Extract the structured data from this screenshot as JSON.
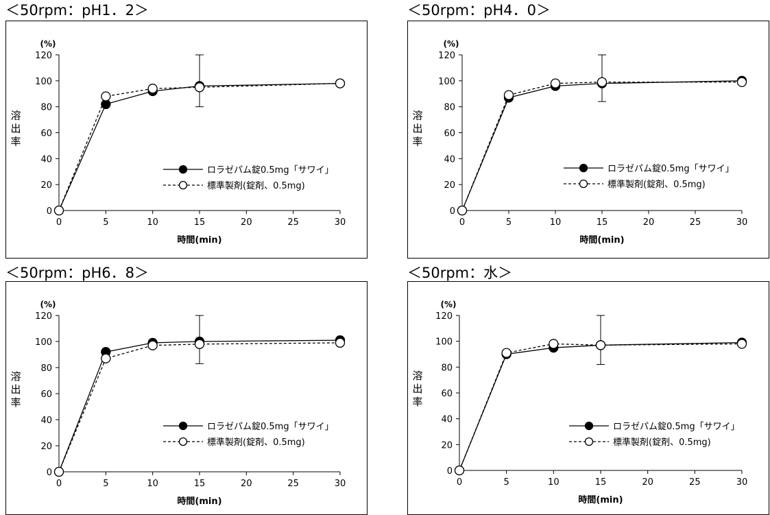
{
  "charts": [
    {
      "panel_title": "＜50rpm：pH1．2＞",
      "chart_data": {
        "type": "line",
        "x": [
          0,
          5,
          10,
          15,
          30
        ],
        "xlim": [
          0,
          30
        ],
        "xticks": [
          0,
          5,
          10,
          15,
          20,
          25,
          30
        ],
        "ylim": [
          0,
          120
        ],
        "yticks": [
          0,
          20,
          40,
          60,
          80,
          100,
          120
        ],
        "y_unit": "(%)",
        "ylabel": "溶出率",
        "xlabel": "時間(min)",
        "legend_position": "lower-right",
        "series": [
          {
            "name": "ロラゼパム錠0.5mg「サワイ」",
            "values": [
              0,
              82,
              92,
              96,
              98
            ],
            "marker": "filled-circle",
            "line": "solid"
          },
          {
            "name": "標準製剤(錠剤、0.5mg)",
            "values": [
              0,
              88,
              94,
              95,
              98
            ],
            "marker": "open-circle",
            "line": "dashed"
          }
        ],
        "error_bars": [
          {
            "x": 15,
            "low": 80,
            "high": 120
          }
        ]
      }
    },
    {
      "panel_title": "＜50rpm：pH4．0＞",
      "chart_data": {
        "type": "line",
        "x": [
          0,
          5,
          10,
          15,
          30
        ],
        "xlim": [
          0,
          30
        ],
        "xticks": [
          0,
          5,
          10,
          15,
          20,
          25,
          30
        ],
        "ylim": [
          0,
          120
        ],
        "yticks": [
          0,
          20,
          40,
          60,
          80,
          100,
          120
        ],
        "y_unit": "(%)",
        "ylabel": "溶出率",
        "xlabel": "時間(min)",
        "legend_position": "lower-right",
        "series": [
          {
            "name": "ロラゼパム錠0.5mg「サワイ」",
            "values": [
              0,
              87,
              96,
              98,
              100
            ],
            "marker": "filled-circle",
            "line": "solid"
          },
          {
            "name": "標準製剤(錠剤、0.5mg)",
            "values": [
              0,
              89,
              98,
              99,
              99
            ],
            "marker": "open-circle",
            "line": "dashed"
          }
        ],
        "error_bars": [
          {
            "x": 15,
            "low": 84,
            "high": 120
          }
        ]
      }
    },
    {
      "panel_title": "＜50rpm：pH6．8＞",
      "chart_data": {
        "type": "line",
        "x": [
          0,
          5,
          10,
          15,
          30
        ],
        "xlim": [
          0,
          30
        ],
        "xticks": [
          0,
          5,
          10,
          15,
          20,
          25,
          30
        ],
        "ylim": [
          0,
          120
        ],
        "yticks": [
          0,
          20,
          40,
          60,
          80,
          100,
          120
        ],
        "y_unit": "(%)",
        "ylabel": "溶出率",
        "xlabel": "時間(min)",
        "legend_position": "lower-right",
        "series": [
          {
            "name": "ロラゼパム錠0.5mg「サワイ」",
            "values": [
              0,
              92,
              99,
              100,
              101
            ],
            "marker": "filled-circle",
            "line": "solid"
          },
          {
            "name": "標準製剤(錠剤、0.5mg)",
            "values": [
              0,
              87,
              97,
              98,
              99
            ],
            "marker": "open-circle",
            "line": "dashed"
          }
        ],
        "error_bars": [
          {
            "x": 15,
            "low": 83,
            "high": 120
          }
        ]
      }
    },
    {
      "panel_title": "＜50rpm：水＞",
      "chart_data": {
        "type": "line",
        "x": [
          0,
          5,
          10,
          15,
          30
        ],
        "xlim": [
          0,
          30
        ],
        "xticks": [
          0,
          5,
          10,
          15,
          20,
          25,
          30
        ],
        "ylim": [
          0,
          120
        ],
        "yticks": [
          0,
          20,
          40,
          60,
          80,
          100,
          120
        ],
        "y_unit": "(%)",
        "ylabel": "溶出率",
        "xlabel": "時間(min)",
        "legend_position": "lower-right",
        "series": [
          {
            "name": "ロラゼパム錠0.5mg「サワイ」",
            "values": [
              0,
              90,
              95,
              97,
              99
            ],
            "marker": "filled-circle",
            "line": "solid"
          },
          {
            "name": "標準製剤(錠剤、0.5mg)",
            "values": [
              0,
              91,
              98,
              97,
              98
            ],
            "marker": "open-circle",
            "line": "dashed"
          }
        ],
        "error_bars": [
          {
            "x": 15,
            "low": 82,
            "high": 120
          }
        ]
      }
    }
  ]
}
